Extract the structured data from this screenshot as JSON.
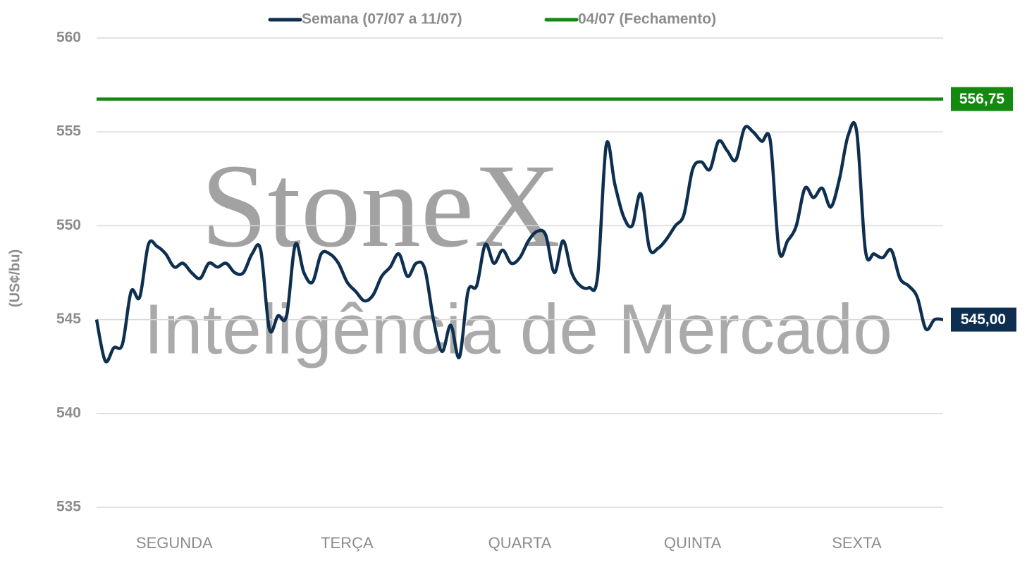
{
  "chart_data": {
    "type": "line",
    "y_label": "(US¢/bu)",
    "ylim": [
      535,
      560
    ],
    "yticks": [
      535,
      540,
      545,
      550,
      555,
      560
    ],
    "grid": true,
    "legend": "top",
    "categories": [
      null,
      null,
      null,
      null,
      null,
      null,
      null,
      null,
      null,
      "SEGUNDA",
      null,
      null,
      null,
      null,
      null,
      null,
      null,
      null,
      null,
      null,
      null,
      null,
      null,
      null,
      null,
      null,
      null,
      null,
      null,
      "TERÇA",
      null,
      null,
      null,
      null,
      null,
      null,
      null,
      null,
      null,
      null,
      null,
      null,
      null,
      null,
      null,
      null,
      null,
      null,
      null,
      "QUARTA",
      null,
      null,
      null,
      null,
      null,
      null,
      null,
      null,
      null,
      null,
      null,
      null,
      null,
      null,
      null,
      null,
      null,
      null,
      null,
      "QUINTA",
      null,
      null,
      null,
      null,
      null,
      null,
      null,
      null,
      null,
      null,
      null,
      null,
      null,
      null,
      null,
      null,
      null,
      null,
      "SEXTA",
      null,
      null,
      null,
      null,
      null,
      null,
      null,
      null,
      null,
      null
    ],
    "series": [
      {
        "name": "Semana (07/07 a 11/07)",
        "color": "#0e2f50",
        "end_label": "545,00",
        "values": [
          545,
          542.8,
          543.5,
          543.7,
          546.5,
          546.2,
          549,
          548.9,
          548.5,
          547.8,
          548,
          547.5,
          547.2,
          548,
          547.8,
          548,
          547.5,
          547.5,
          548.5,
          548.7,
          544.5,
          545.2,
          545.2,
          549,
          547.5,
          547,
          548.5,
          548.5,
          548,
          547,
          546.5,
          546,
          546.3,
          547.3,
          547.8,
          548.5,
          547.3,
          548,
          547.7,
          545,
          543.3,
          544.7,
          543,
          546.5,
          546.8,
          549,
          548,
          548.7,
          548,
          548.3,
          549.2,
          549.7,
          549.5,
          547.5,
          549.2,
          547.5,
          546.8,
          546.7,
          547.3,
          554.3,
          552.2,
          550.5,
          550,
          551.7,
          548.8,
          548.8,
          549.3,
          550,
          550.6,
          553,
          553.4,
          553,
          554.5,
          554,
          553.5,
          555.2,
          555,
          554.5,
          554.5,
          548.7,
          549.2,
          550,
          552,
          551.5,
          552,
          551,
          552.5,
          554.8,
          555,
          548.7,
          548.5,
          548.3,
          548.7,
          547.2,
          546.8,
          546.2,
          544.5,
          545,
          545
        ]
      },
      {
        "name": "04/07 (Fechamento)",
        "color": "#13890f",
        "value": 556.75,
        "value_label": "556,75"
      }
    ]
  }
}
